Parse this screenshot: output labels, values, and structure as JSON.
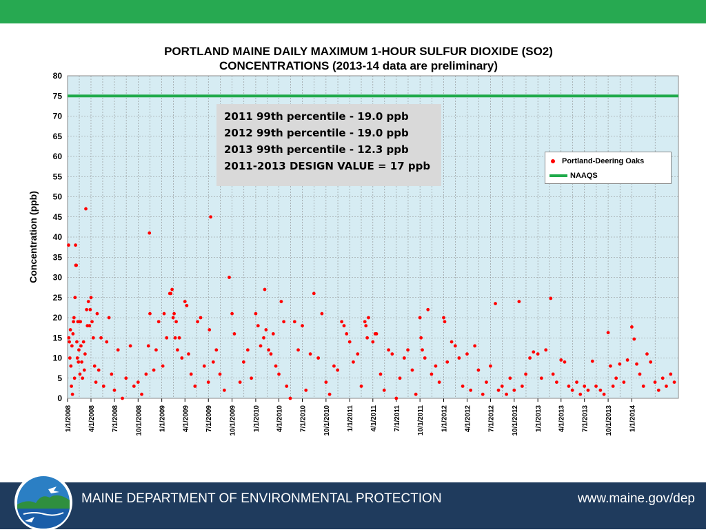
{
  "colors": {
    "top_bar": "#27a951",
    "footer_bar": "#1f3b5d",
    "plot_bg": "#d6ecf3",
    "marker": "#ff0000",
    "naaqs_line": "#1faa4a",
    "stats_box": "#d9d9d9"
  },
  "stats_box": {
    "lines": [
      "2011 99th percentile - 19.0 ppb",
      "2012 99th percentile - 19.0 ppb",
      "2013 99th percentile - 12.3 ppb",
      "2011-2013  DESIGN VALUE = 17 ppb"
    ]
  },
  "footer": {
    "org": "MAINE DEPARTMENT OF ENVIRONMENTAL PROTECTION",
    "url": "www.maine.gov/dep",
    "logo_icon": "maine-dep-logo-icon"
  },
  "chart_data": {
    "type": "scatter",
    "title_lines": [
      "PORTLAND MAINE DAILY MAXIMUM 1-HOUR SULFUR DIOXIDE (SO2)",
      "CONCENTRATIONS (2013-14 data are preliminary)"
    ],
    "xlabel": "",
    "ylabel": "Concentration (ppb)",
    "ylim": [
      0,
      80
    ],
    "yticks": [
      0,
      5,
      10,
      15,
      20,
      25,
      30,
      35,
      40,
      45,
      50,
      55,
      60,
      65,
      70,
      75,
      80
    ],
    "xlim": [
      "2008-01-01",
      "2014-07-01"
    ],
    "xticks": [
      "1/1/2008",
      "4/1/2008",
      "7/1/2008",
      "10/1/2008",
      "1/1/2009",
      "4/1/2009",
      "7/1/2009",
      "10/1/2009",
      "1/1/2010",
      "4/1/2010",
      "7/1/2010",
      "10/1/2010",
      "1/1/2011",
      "4/1/2011",
      "7/1/2011",
      "10/1/2011",
      "1/1/2012",
      "4/1/2012",
      "7/1/2012",
      "10/1/2012",
      "1/1/2013",
      "4/1/2013",
      "7/1/2013",
      "10/1/2013",
      "1/1/2014"
    ],
    "grid": true,
    "legend_position": "right",
    "series": [
      {
        "name": "Portland-Deering Oaks",
        "marker": "circle",
        "points": [
          [
            "2008-01-05",
            38
          ],
          [
            "2008-01-06",
            15
          ],
          [
            "2008-01-08",
            14
          ],
          [
            "2008-01-10",
            10
          ],
          [
            "2008-01-12",
            17
          ],
          [
            "2008-01-14",
            8
          ],
          [
            "2008-01-16",
            3
          ],
          [
            "2008-01-18",
            13
          ],
          [
            "2008-01-20",
            1
          ],
          [
            "2008-01-22",
            16
          ],
          [
            "2008-01-24",
            19
          ],
          [
            "2008-01-26",
            20
          ],
          [
            "2008-01-28",
            5
          ],
          [
            "2008-01-30",
            25
          ],
          [
            "2008-02-01",
            38
          ],
          [
            "2008-02-02",
            33
          ],
          [
            "2008-02-04",
            33
          ],
          [
            "2008-02-06",
            14
          ],
          [
            "2008-02-08",
            10
          ],
          [
            "2008-02-10",
            19
          ],
          [
            "2008-02-12",
            9
          ],
          [
            "2008-02-14",
            12
          ],
          [
            "2008-02-16",
            19
          ],
          [
            "2008-02-18",
            6
          ],
          [
            "2008-02-20",
            19
          ],
          [
            "2008-02-22",
            13
          ],
          [
            "2008-02-25",
            9
          ],
          [
            "2008-02-28",
            5
          ],
          [
            "2008-03-03",
            14
          ],
          [
            "2008-03-06",
            7
          ],
          [
            "2008-03-09",
            11
          ],
          [
            "2008-03-12",
            47
          ],
          [
            "2008-03-15",
            22
          ],
          [
            "2008-03-18",
            18
          ],
          [
            "2008-03-22",
            24
          ],
          [
            "2008-03-26",
            18
          ],
          [
            "2008-03-29",
            22
          ],
          [
            "2008-04-01",
            25
          ],
          [
            "2008-04-05",
            19
          ],
          [
            "2008-04-10",
            15
          ],
          [
            "2008-04-15",
            8
          ],
          [
            "2008-04-20",
            4
          ],
          [
            "2008-04-25",
            21
          ],
          [
            "2008-05-01",
            7
          ],
          [
            "2008-05-10",
            15
          ],
          [
            "2008-05-20",
            3
          ],
          [
            "2008-06-01",
            14
          ],
          [
            "2008-06-10",
            20
          ],
          [
            "2008-06-20",
            6
          ],
          [
            "2008-07-01",
            2
          ],
          [
            "2008-07-15",
            12
          ],
          [
            "2008-08-01",
            0
          ],
          [
            "2008-08-15",
            5
          ],
          [
            "2008-09-01",
            13
          ],
          [
            "2008-09-15",
            3
          ],
          [
            "2008-10-01",
            4
          ],
          [
            "2008-10-15",
            1
          ],
          [
            "2008-11-01",
            6
          ],
          [
            "2008-11-10",
            13
          ],
          [
            "2008-11-14",
            41
          ],
          [
            "2008-11-16",
            21
          ],
          [
            "2008-12-01",
            7
          ],
          [
            "2008-12-10",
            12
          ],
          [
            "2008-12-20",
            19
          ],
          [
            "2009-01-05",
            8
          ],
          [
            "2009-01-10",
            21
          ],
          [
            "2009-01-20",
            15
          ],
          [
            "2009-02-01",
            26
          ],
          [
            "2009-02-05",
            26
          ],
          [
            "2009-02-10",
            27
          ],
          [
            "2009-02-14",
            20
          ],
          [
            "2009-02-18",
            21
          ],
          [
            "2009-02-22",
            15
          ],
          [
            "2009-02-26",
            19
          ],
          [
            "2009-03-03",
            12
          ],
          [
            "2009-03-10",
            15
          ],
          [
            "2009-03-20",
            10
          ],
          [
            "2009-04-01",
            24
          ],
          [
            "2009-04-08",
            23
          ],
          [
            "2009-04-15",
            11
          ],
          [
            "2009-04-25",
            6
          ],
          [
            "2009-05-10",
            3
          ],
          [
            "2009-05-20",
            19
          ],
          [
            "2009-06-01",
            20
          ],
          [
            "2009-06-15",
            8
          ],
          [
            "2009-07-01",
            4
          ],
          [
            "2009-07-05",
            17
          ],
          [
            "2009-07-10",
            45
          ],
          [
            "2009-07-20",
            9
          ],
          [
            "2009-08-01",
            12
          ],
          [
            "2009-08-15",
            6
          ],
          [
            "2009-09-01",
            2
          ],
          [
            "2009-09-20",
            30
          ],
          [
            "2009-10-01",
            21
          ],
          [
            "2009-10-10",
            16
          ],
          [
            "2009-11-01",
            4
          ],
          [
            "2009-11-15",
            9
          ],
          [
            "2009-12-01",
            12
          ],
          [
            "2009-12-15",
            5
          ],
          [
            "2010-01-01",
            21
          ],
          [
            "2010-01-10",
            18
          ],
          [
            "2010-01-20",
            13
          ],
          [
            "2010-02-01",
            15
          ],
          [
            "2010-02-05",
            27
          ],
          [
            "2010-02-10",
            17
          ],
          [
            "2010-02-20",
            12
          ],
          [
            "2010-03-01",
            11
          ],
          [
            "2010-03-10",
            16
          ],
          [
            "2010-03-20",
            8
          ],
          [
            "2010-04-01",
            6
          ],
          [
            "2010-04-10",
            24
          ],
          [
            "2010-04-20",
            19
          ],
          [
            "2010-05-01",
            3
          ],
          [
            "2010-05-15",
            0
          ],
          [
            "2010-06-01",
            19
          ],
          [
            "2010-06-15",
            12
          ],
          [
            "2010-07-01",
            18
          ],
          [
            "2010-07-15",
            2
          ],
          [
            "2010-08-01",
            11
          ],
          [
            "2010-08-15",
            26
          ],
          [
            "2010-09-01",
            10
          ],
          [
            "2010-09-15",
            21
          ],
          [
            "2010-10-01",
            4
          ],
          [
            "2010-10-15",
            1
          ],
          [
            "2010-11-01",
            8
          ],
          [
            "2010-11-15",
            7
          ],
          [
            "2010-12-01",
            19
          ],
          [
            "2010-12-10",
            18
          ],
          [
            "2010-12-20",
            16
          ],
          [
            "2011-01-01",
            14
          ],
          [
            "2011-01-15",
            9
          ],
          [
            "2011-02-01",
            11
          ],
          [
            "2011-02-15",
            3
          ],
          [
            "2011-03-01",
            19
          ],
          [
            "2011-03-05",
            18
          ],
          [
            "2011-03-10",
            15
          ],
          [
            "2011-03-15",
            20
          ],
          [
            "2011-04-01",
            14
          ],
          [
            "2011-04-10",
            16
          ],
          [
            "2011-04-15",
            16
          ],
          [
            "2011-05-01",
            6
          ],
          [
            "2011-05-15",
            2
          ],
          [
            "2011-06-01",
            12
          ],
          [
            "2011-06-15",
            11
          ],
          [
            "2011-07-01",
            0
          ],
          [
            "2011-07-15",
            5
          ],
          [
            "2011-08-01",
            10
          ],
          [
            "2011-08-15",
            12
          ],
          [
            "2011-09-01",
            7
          ],
          [
            "2011-09-15",
            1
          ],
          [
            "2011-10-01",
            20
          ],
          [
            "2011-10-05",
            15
          ],
          [
            "2011-10-10",
            12
          ],
          [
            "2011-10-20",
            10
          ],
          [
            "2011-11-01",
            22
          ],
          [
            "2011-11-15",
            6
          ],
          [
            "2011-12-01",
            8
          ],
          [
            "2011-12-15",
            4
          ],
          [
            "2012-01-01",
            20
          ],
          [
            "2012-01-05",
            19
          ],
          [
            "2012-01-15",
            9
          ],
          [
            "2012-02-01",
            14
          ],
          [
            "2012-02-15",
            13
          ],
          [
            "2012-03-01",
            10
          ],
          [
            "2012-03-15",
            3
          ],
          [
            "2012-04-01",
            11
          ],
          [
            "2012-04-15",
            2
          ],
          [
            "2012-05-01",
            13
          ],
          [
            "2012-05-15",
            7
          ],
          [
            "2012-06-01",
            1
          ],
          [
            "2012-06-15",
            4
          ],
          [
            "2012-07-01",
            8
          ],
          [
            "2012-07-20",
            23.5
          ],
          [
            "2012-08-01",
            2
          ],
          [
            "2012-08-15",
            3
          ],
          [
            "2012-09-01",
            1
          ],
          [
            "2012-09-15",
            5
          ],
          [
            "2012-10-01",
            2
          ],
          [
            "2012-10-20",
            24
          ],
          [
            "2012-11-01",
            3
          ],
          [
            "2012-11-15",
            6
          ],
          [
            "2012-12-01",
            10
          ],
          [
            "2012-12-15",
            11.5
          ],
          [
            "2013-01-01",
            11
          ],
          [
            "2013-01-15",
            5
          ],
          [
            "2013-02-01",
            12
          ],
          [
            "2013-02-20",
            24.8
          ],
          [
            "2013-03-01",
            6
          ],
          [
            "2013-03-15",
            4
          ],
          [
            "2013-04-01",
            9.5
          ],
          [
            "2013-04-15",
            9
          ],
          [
            "2013-05-01",
            3
          ],
          [
            "2013-05-15",
            2
          ],
          [
            "2013-06-01",
            4
          ],
          [
            "2013-06-15",
            1
          ],
          [
            "2013-07-01",
            3
          ],
          [
            "2013-07-15",
            2
          ],
          [
            "2013-08-01",
            9.2
          ],
          [
            "2013-08-15",
            3
          ],
          [
            "2013-09-01",
            2
          ],
          [
            "2013-09-15",
            1
          ],
          [
            "2013-10-01",
            16.3
          ],
          [
            "2013-10-10",
            8
          ],
          [
            "2013-10-20",
            3
          ],
          [
            "2013-11-01",
            5
          ],
          [
            "2013-11-15",
            8.5
          ],
          [
            "2013-12-01",
            4
          ],
          [
            "2013-12-15",
            9.5
          ],
          [
            "2014-01-01",
            17.7
          ],
          [
            "2014-01-10",
            14.7
          ],
          [
            "2014-01-20",
            8.5
          ],
          [
            "2014-02-01",
            6
          ],
          [
            "2014-02-15",
            3
          ],
          [
            "2014-03-01",
            11
          ],
          [
            "2014-03-15",
            9
          ],
          [
            "2014-04-01",
            4
          ],
          [
            "2014-04-15",
            2
          ],
          [
            "2014-05-01",
            5
          ],
          [
            "2014-05-15",
            3
          ],
          [
            "2014-06-01",
            6
          ],
          [
            "2014-06-15",
            4
          ]
        ]
      },
      {
        "name": "NAAQS",
        "type": "line",
        "value": 75
      }
    ]
  }
}
